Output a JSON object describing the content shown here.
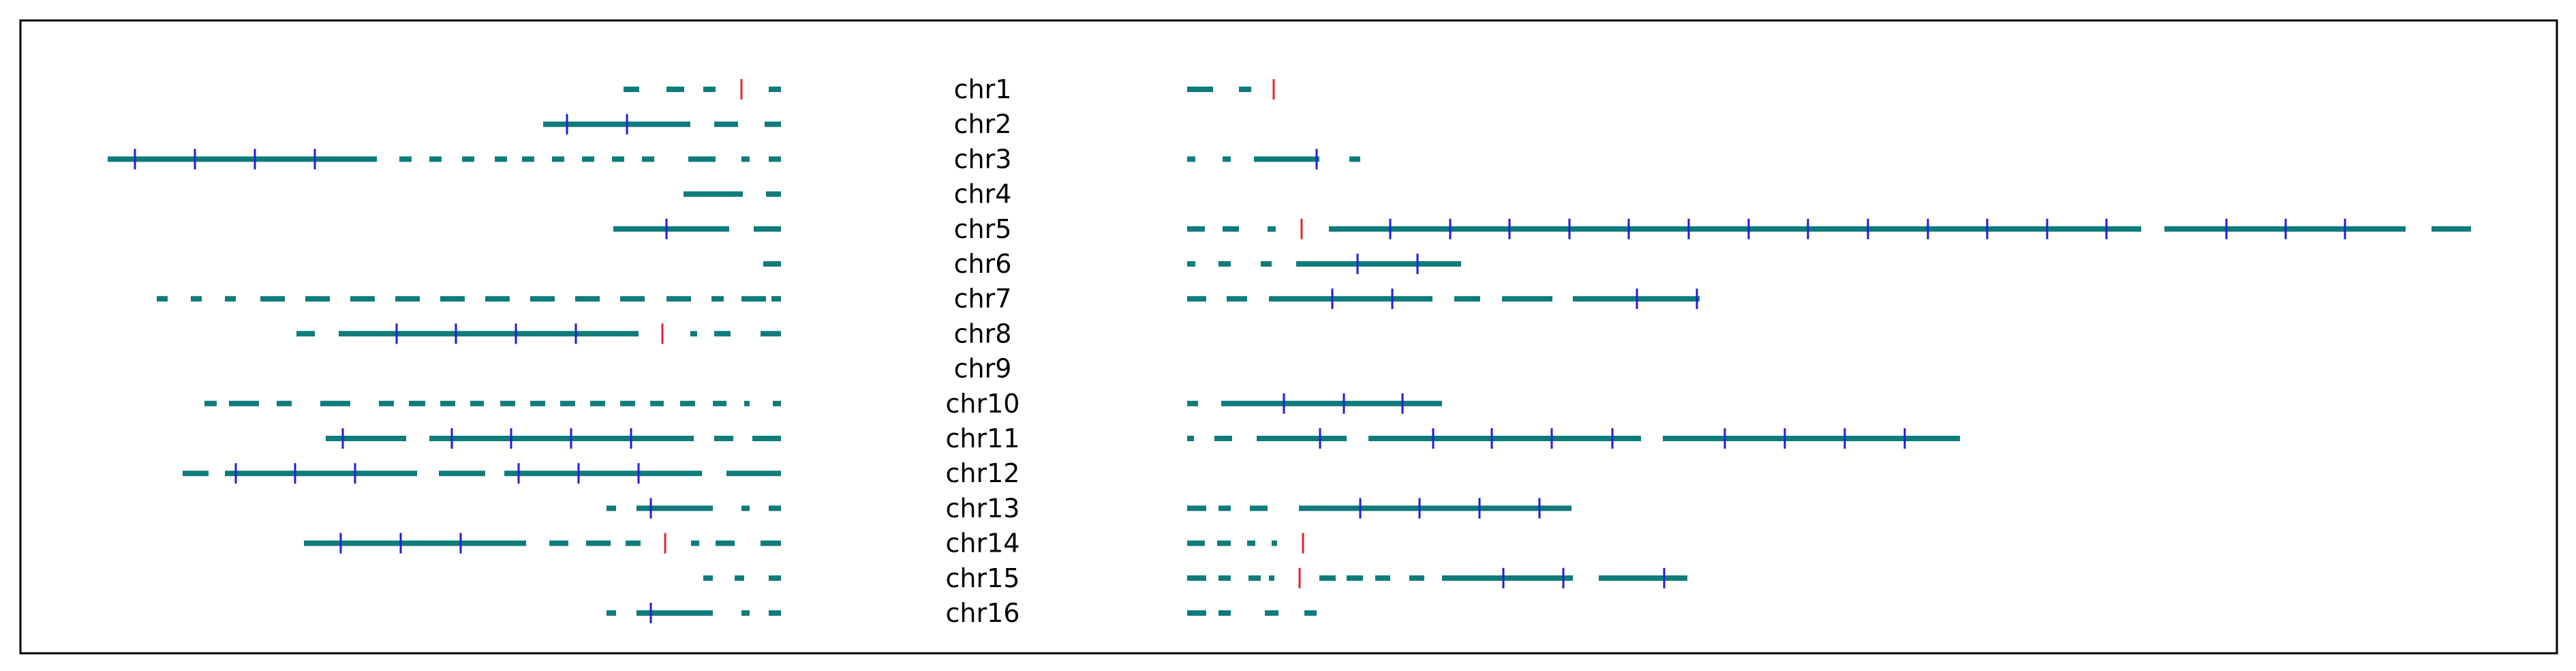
{
  "colors": {
    "segment": "#0e7c7b",
    "tick": "#1f1fd6",
    "marker": "#e0262a",
    "border": "#000000",
    "background": "#ffffff"
  },
  "chromosomes": [
    {
      "label": "chr1",
      "left": {
        "segments": [
          [
            915,
            938
          ],
          [
            978,
            1004
          ],
          [
            1032,
            1050
          ],
          [
            1128,
            1146
          ]
        ],
        "ticks": [],
        "markers": [
          1088
        ]
      },
      "right": {
        "segments": [
          [
            1742,
            1780
          ],
          [
            1818,
            1836
          ]
        ],
        "ticks": [],
        "markers": [
          1869
        ]
      }
    },
    {
      "label": "chr2",
      "left": {
        "segments": [
          [
            797,
            1013
          ],
          [
            1048,
            1083
          ],
          [
            1122,
            1146
          ]
        ],
        "ticks": [
          832,
          920
        ],
        "markers": []
      },
      "right": {
        "segments": [],
        "ticks": [],
        "markers": []
      }
    },
    {
      "label": "chr3",
      "left": {
        "segments": [
          [
            158,
            553
          ],
          [
            586,
            604
          ],
          [
            630,
            648
          ],
          [
            678,
            696
          ],
          [
            726,
            744
          ],
          [
            766,
            784
          ],
          [
            810,
            828
          ],
          [
            854,
            872
          ],
          [
            898,
            916
          ],
          [
            942,
            960
          ],
          [
            1010,
            1050
          ],
          [
            1088,
            1100
          ],
          [
            1128,
            1146
          ]
        ],
        "ticks": [
          198,
          286,
          374,
          462
        ],
        "markers": []
      },
      "right": {
        "segments": [
          [
            1742,
            1754
          ],
          [
            1794,
            1806
          ],
          [
            1840,
            1936
          ],
          [
            1980,
            1996
          ]
        ],
        "ticks": [
          1932
        ],
        "markers": []
      }
    },
    {
      "label": "chr4",
      "left": {
        "segments": [
          [
            1003,
            1090
          ],
          [
            1124,
            1146
          ]
        ],
        "ticks": [],
        "markers": []
      },
      "right": {
        "segments": [],
        "ticks": [],
        "markers": []
      }
    },
    {
      "label": "chr5",
      "left": {
        "segments": [
          [
            900,
            1070
          ],
          [
            1106,
            1146
          ]
        ],
        "ticks": [
          978
        ],
        "markers": []
      },
      "right": {
        "segments": [
          [
            1742,
            1768
          ],
          [
            1794,
            1818
          ],
          [
            1860,
            1872
          ],
          [
            1950,
            3142
          ],
          [
            3176,
            3530
          ],
          [
            3568,
            3626
          ]
        ],
        "ticks": [
          2040,
          2128,
          2215,
          2303,
          2390,
          2478,
          2566,
          2653,
          2741,
          2829,
          2916,
          3004,
          3091,
          3267,
          3354,
          3441
        ],
        "markers": [
          1910
        ]
      }
    },
    {
      "label": "chr6",
      "left": {
        "segments": [
          [
            1120,
            1146
          ]
        ],
        "ticks": [],
        "markers": []
      },
      "right": {
        "segments": [
          [
            1742,
            1754
          ],
          [
            1788,
            1806
          ],
          [
            1850,
            1866
          ],
          [
            1902,
            2144
          ]
        ],
        "ticks": [
          1992,
          2080
        ],
        "markers": []
      }
    },
    {
      "label": "chr7",
      "left": {
        "segments": [
          [
            230,
            246
          ],
          [
            280,
            296
          ],
          [
            330,
            346
          ],
          [
            382,
            418
          ],
          [
            448,
            484
          ],
          [
            514,
            550
          ],
          [
            580,
            616
          ],
          [
            646,
            682
          ],
          [
            712,
            748
          ],
          [
            778,
            814
          ],
          [
            844,
            880
          ],
          [
            910,
            946
          ],
          [
            978,
            1014
          ],
          [
            1044,
            1062
          ],
          [
            1088,
            1124
          ],
          [
            1132,
            1146
          ]
        ],
        "ticks": [],
        "markers": []
      },
      "right": {
        "segments": [
          [
            1742,
            1770
          ],
          [
            1800,
            1830
          ],
          [
            1862,
            2102
          ],
          [
            2134,
            2172
          ],
          [
            2204,
            2278
          ],
          [
            2308,
            2494
          ]
        ],
        "ticks": [
          1955,
          2043,
          2402,
          2490
        ],
        "markers": []
      }
    },
    {
      "label": "chr8",
      "left": {
        "segments": [
          [
            435,
            462
          ],
          [
            497,
            937
          ],
          [
            1013,
            1023
          ],
          [
            1048,
            1072
          ],
          [
            1116,
            1146
          ]
        ],
        "ticks": [
          582,
          669,
          757,
          845
        ],
        "markers": [
          972
        ]
      },
      "right": {
        "segments": [],
        "ticks": [],
        "markers": []
      }
    },
    {
      "label": "chr9",
      "left": {
        "segments": [],
        "ticks": [],
        "markers": []
      },
      "right": {
        "segments": [],
        "ticks": [],
        "markers": []
      }
    },
    {
      "label": "chr10",
      "left": {
        "segments": [
          [
            300,
            318
          ],
          [
            336,
            380
          ],
          [
            406,
            428
          ],
          [
            470,
            514
          ],
          [
            556,
            578
          ],
          [
            600,
            624
          ],
          [
            646,
            668
          ],
          [
            690,
            710
          ],
          [
            734,
            756
          ],
          [
            778,
            800
          ],
          [
            822,
            844
          ],
          [
            866,
            888
          ],
          [
            910,
            932
          ],
          [
            954,
            974
          ],
          [
            998,
            1020
          ],
          [
            1046,
            1066
          ],
          [
            1092,
            1100
          ],
          [
            1134,
            1146
          ]
        ],
        "ticks": [],
        "markers": []
      },
      "right": {
        "segments": [
          [
            1742,
            1758
          ],
          [
            1792,
            2116
          ]
        ],
        "ticks": [
          1884,
          1972,
          2058
        ],
        "markers": []
      }
    },
    {
      "label": "chr11",
      "left": {
        "segments": [
          [
            478,
            596
          ],
          [
            630,
            1018
          ],
          [
            1048,
            1076
          ],
          [
            1104,
            1146
          ]
        ],
        "ticks": [
          503,
          663,
          750,
          838,
          926
        ],
        "markers": []
      },
      "right": {
        "segments": [
          [
            1742,
            1752
          ],
          [
            1782,
            1808
          ],
          [
            1844,
            1976
          ],
          [
            2008,
            2408
          ],
          [
            2440,
            2876
          ]
        ],
        "ticks": [
          1937,
          2103,
          2189,
          2277,
          2366,
          2531,
          2619,
          2707,
          2795
        ],
        "markers": []
      }
    },
    {
      "label": "chr12",
      "left": {
        "segments": [
          [
            268,
            306
          ],
          [
            330,
            612
          ],
          [
            644,
            712
          ],
          [
            740,
            1030
          ],
          [
            1066,
            1146
          ]
        ],
        "ticks": [
          346,
          433,
          521,
          761,
          849,
          937
        ],
        "markers": []
      },
      "right": {
        "segments": [],
        "ticks": [],
        "markers": []
      }
    },
    {
      "label": "chr13",
      "left": {
        "segments": [
          [
            890,
            904
          ],
          [
            934,
            1046
          ],
          [
            1088,
            1100
          ],
          [
            1128,
            1146
          ]
        ],
        "ticks": [
          955
        ],
        "markers": []
      },
      "right": {
        "segments": [
          [
            1742,
            1770
          ],
          [
            1788,
            1806
          ],
          [
            1834,
            1860
          ],
          [
            1906,
            2306
          ]
        ],
        "ticks": [
          1996,
          2083,
          2171,
          2259
        ],
        "markers": []
      }
    },
    {
      "label": "chr14",
      "left": {
        "segments": [
          [
            446,
            772
          ],
          [
            806,
            834
          ],
          [
            860,
            896
          ],
          [
            918,
            940
          ],
          [
            1014,
            1026
          ],
          [
            1050,
            1078
          ],
          [
            1116,
            1146
          ]
        ],
        "ticks": [
          500,
          588,
          676
        ],
        "markers": [
          976
        ]
      },
      "right": {
        "segments": [
          [
            1742,
            1768
          ],
          [
            1786,
            1806
          ],
          [
            1830,
            1842
          ],
          [
            1866,
            1874
          ]
        ],
        "ticks": [],
        "markers": [
          1912
        ]
      }
    },
    {
      "label": "chr15",
      "left": {
        "segments": [
          [
            1032,
            1046
          ],
          [
            1078,
            1092
          ],
          [
            1128,
            1146
          ]
        ],
        "ticks": [],
        "markers": []
      },
      "right": {
        "segments": [
          [
            1742,
            1770
          ],
          [
            1788,
            1806
          ],
          [
            1832,
            1850
          ],
          [
            1862,
            1870
          ],
          [
            1936,
            1960
          ],
          [
            1976,
            2000
          ],
          [
            2018,
            2040
          ],
          [
            2068,
            2090
          ],
          [
            2116,
            2308
          ],
          [
            2346,
            2476
          ]
        ],
        "ticks": [
          2206,
          2294,
          2442
        ],
        "markers": [
          1907
        ]
      }
    },
    {
      "label": "chr16",
      "left": {
        "segments": [
          [
            890,
            904
          ],
          [
            934,
            1046
          ],
          [
            1088,
            1100
          ],
          [
            1128,
            1146
          ]
        ],
        "ticks": [
          955
        ],
        "markers": []
      },
      "right": {
        "segments": [
          [
            1742,
            1770
          ],
          [
            1788,
            1806
          ],
          [
            1856,
            1876
          ],
          [
            1914,
            1932
          ]
        ],
        "ticks": [],
        "markers": []
      }
    }
  ]
}
